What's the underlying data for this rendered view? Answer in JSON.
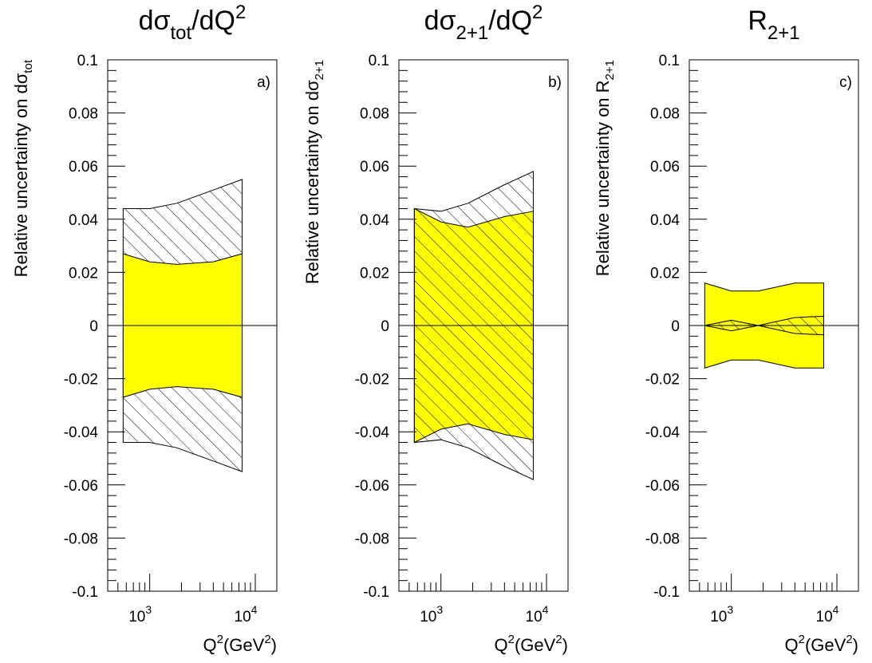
{
  "chart_data": [
    {
      "type": "area",
      "panel_tag": "a)",
      "title": {
        "base": "dσ",
        "sub": "tot",
        "tail": "/dQ",
        "sup": "2"
      },
      "ylabel": {
        "base": "Relative uncertainty on dσ",
        "sub": "tot"
      },
      "xlabel": {
        "base": "Q",
        "sup": "2",
        "mid": "(GeV",
        "sup2": "2",
        "tail": ")"
      },
      "x_scale": "log",
      "xlim": [
        400,
        16000
      ],
      "ylim": [
        -0.1,
        0.1
      ],
      "x_tick_labels": [
        {
          "base": "10",
          "sup": "3"
        },
        {
          "base": "10",
          "sup": "4"
        }
      ],
      "y_tick_labels": [
        "0.1",
        "0.08",
        "0.06",
        "0.04",
        "0.02",
        "0",
        "-0.02",
        "-0.04",
        "-0.06",
        "-0.08",
        "-0.1"
      ],
      "y_ticks": [
        0.1,
        0.08,
        0.06,
        0.04,
        0.02,
        0,
        -0.02,
        -0.04,
        -0.06,
        -0.08,
        -0.1
      ],
      "x": [
        560,
        1000,
        1800,
        4000,
        7500
      ],
      "series": [
        {
          "style": "hatched",
          "upper": [
            0.044,
            0.044,
            0.046,
            0.051,
            0.055
          ],
          "lower": [
            -0.044,
            -0.044,
            -0.046,
            -0.051,
            -0.055
          ]
        },
        {
          "style": "yellow",
          "upper": [
            0.027,
            0.024,
            0.023,
            0.024,
            0.027
          ],
          "lower": [
            -0.027,
            -0.024,
            -0.023,
            -0.024,
            -0.027
          ]
        }
      ],
      "colors": {
        "fill": "#ffff00",
        "stroke": "#000000"
      }
    },
    {
      "type": "area",
      "panel_tag": "b)",
      "title": {
        "base": "dσ",
        "sub": "2+1",
        "tail": "/dQ",
        "sup": "2"
      },
      "ylabel": {
        "base": "Relative uncertainty on dσ",
        "sub": "2+1"
      },
      "xlabel": {
        "base": "Q",
        "sup": "2",
        "mid": "(GeV",
        "sup2": "2",
        "tail": ")"
      },
      "x_scale": "log",
      "xlim": [
        400,
        16000
      ],
      "ylim": [
        -0.1,
        0.1
      ],
      "x_tick_labels": [
        {
          "base": "10",
          "sup": "3"
        },
        {
          "base": "10",
          "sup": "4"
        }
      ],
      "y_tick_labels": [
        "0.1",
        "0.08",
        "0.06",
        "0.04",
        "0.02",
        "0",
        "-0.02",
        "-0.04",
        "-0.06",
        "-0.08",
        "-0.1"
      ],
      "y_ticks": [
        0.1,
        0.08,
        0.06,
        0.04,
        0.02,
        0,
        -0.02,
        -0.04,
        -0.06,
        -0.08,
        -0.1
      ],
      "x": [
        560,
        1000,
        1800,
        4000,
        7500
      ],
      "series": [
        {
          "style": "yellow",
          "upper": [
            0.044,
            0.039,
            0.037,
            0.041,
            0.043
          ],
          "lower": [
            -0.044,
            -0.039,
            -0.037,
            -0.041,
            -0.043
          ]
        },
        {
          "style": "hatched",
          "upper": [
            0.044,
            0.043,
            0.046,
            0.053,
            0.058
          ],
          "lower": [
            -0.044,
            -0.043,
            -0.046,
            -0.053,
            -0.058
          ]
        }
      ],
      "colors": {
        "fill": "#ffff00",
        "stroke": "#000000"
      }
    },
    {
      "type": "area",
      "panel_tag": "c)",
      "title": {
        "base": "R",
        "sub": "2+1",
        "tail": "",
        "sup": ""
      },
      "ylabel": {
        "base": "Relative uncertainty on R",
        "sub": "2+1"
      },
      "xlabel": {
        "base": "Q",
        "sup": "2",
        "mid": "(GeV",
        "sup2": "2",
        "tail": ")"
      },
      "x_scale": "log",
      "xlim": [
        400,
        16000
      ],
      "ylim": [
        -0.1,
        0.1
      ],
      "x_tick_labels": [
        {
          "base": "10",
          "sup": "3"
        },
        {
          "base": "10",
          "sup": "4"
        }
      ],
      "y_tick_labels": [
        "0.1",
        "0.08",
        "0.06",
        "0.04",
        "0.02",
        "0",
        "-0.02",
        "-0.04",
        "-0.06",
        "-0.08",
        "-0.1"
      ],
      "y_ticks": [
        0.1,
        0.08,
        0.06,
        0.04,
        0.02,
        0,
        -0.02,
        -0.04,
        -0.06,
        -0.08,
        -0.1
      ],
      "x": [
        560,
        1000,
        1800,
        4000,
        7500
      ],
      "series": [
        {
          "style": "yellow",
          "upper": [
            0.016,
            0.013,
            0.013,
            0.016,
            0.016
          ],
          "lower": [
            -0.016,
            -0.013,
            -0.013,
            -0.016,
            -0.016
          ]
        },
        {
          "style": "hatched",
          "upper": [
            0.0,
            0.002,
            0.0,
            0.003,
            0.0035
          ],
          "lower": [
            0.0,
            -0.002,
            0.0,
            -0.003,
            -0.0035
          ]
        }
      ],
      "colors": {
        "fill": "#ffff00",
        "stroke": "#000000"
      }
    }
  ]
}
